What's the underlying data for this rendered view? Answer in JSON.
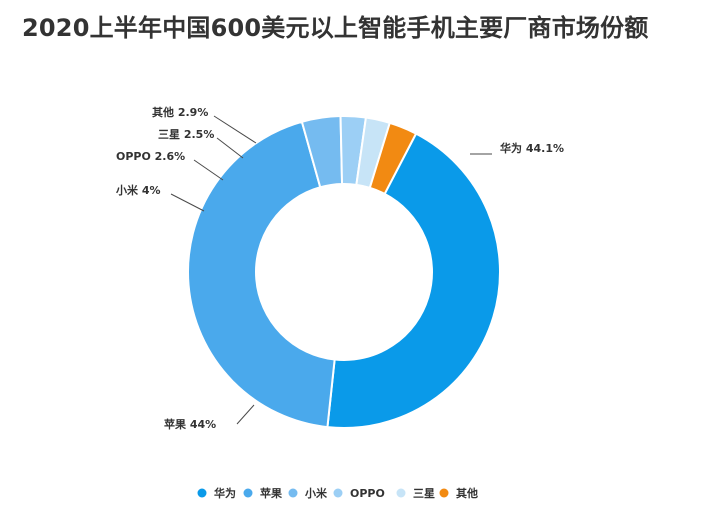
{
  "title": "2020上半年中国600美元以上智能手机主要厂商市场份额",
  "chart_data": {
    "type": "pie",
    "title": "2020上半年中国600美元以上智能手机主要厂商市场份额",
    "donut": true,
    "legend_position": "bottom",
    "categories": [
      "华为",
      "苹果",
      "小米",
      "OPPO",
      "三星",
      "其他"
    ],
    "values": [
      44.1,
      44,
      4,
      2.6,
      2.5,
      2.9
    ],
    "labels": [
      "华为 44.1%",
      "苹果 44%",
      "小米 4%",
      "OPPO 2.6%",
      "三星 2.5%",
      "其他 2.9%"
    ],
    "colors": [
      "#0a9ae9",
      "#4aa9ec",
      "#75bbf0",
      "#9ccff5",
      "#c7e4f7",
      "#f28a12"
    ]
  }
}
